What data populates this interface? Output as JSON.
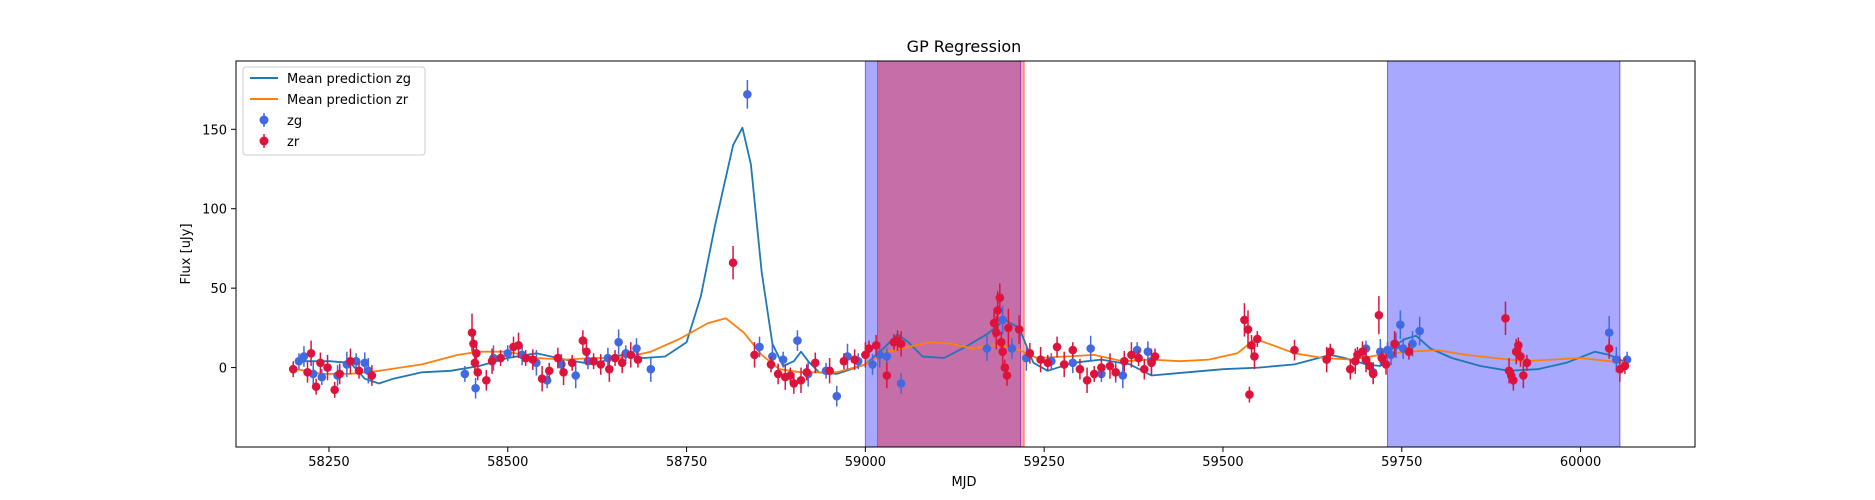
{
  "chart_data": {
    "type": "scatter",
    "title": "GP Regression",
    "xlabel": "MJD",
    "ylabel": "Flux [uJy]",
    "xlim": [
      58120,
      60160
    ],
    "ylim": [
      -50,
      193
    ],
    "xticks": [
      58250,
      58500,
      58750,
      59000,
      59250,
      59500,
      59750,
      60000
    ],
    "yticks": [
      0,
      50,
      100,
      150
    ],
    "legend_position": "top-left",
    "legend": [
      "Mean prediction zg",
      "Mean prediction zr",
      "zg",
      "zr"
    ],
    "colors": {
      "zg_line": "#1f77b4",
      "zr_line": "#ff7f0e",
      "zg_points": "#4169e1",
      "zr_points": "#dc143c",
      "zg_span": "#0000ff",
      "zr_span": "#ff0000"
    },
    "shaded_regions": [
      {
        "band": "zg",
        "x_start": 59000,
        "x_end": 59217
      },
      {
        "band": "zr",
        "x_start": 59017,
        "x_end": 59222
      },
      {
        "band": "zg",
        "x_start": 59730,
        "x_end": 60055
      }
    ],
    "series": [
      {
        "name": "Mean prediction zg",
        "type": "line",
        "points": [
          [
            58205,
            4
          ],
          [
            58250,
            4
          ],
          [
            58280,
            3
          ],
          [
            58300,
            -7
          ],
          [
            58320,
            -10
          ],
          [
            58340,
            -7
          ],
          [
            58380,
            -3
          ],
          [
            58420,
            -2
          ],
          [
            58460,
            1
          ],
          [
            58500,
            6
          ],
          [
            58540,
            9
          ],
          [
            58580,
            5
          ],
          [
            58620,
            2
          ],
          [
            58660,
            8
          ],
          [
            58690,
            6
          ],
          [
            58720,
            7
          ],
          [
            58750,
            16
          ],
          [
            58770,
            45
          ],
          [
            58790,
            90
          ],
          [
            58815,
            140
          ],
          [
            58828,
            151
          ],
          [
            58840,
            128
          ],
          [
            58855,
            60
          ],
          [
            58870,
            15
          ],
          [
            58885,
            1
          ],
          [
            58900,
            4
          ],
          [
            58910,
            10
          ],
          [
            58920,
            4
          ],
          [
            58935,
            -3
          ],
          [
            58960,
            -4
          ],
          [
            59000,
            2
          ],
          [
            59025,
            12
          ],
          [
            59045,
            21
          ],
          [
            59060,
            16
          ],
          [
            59080,
            7
          ],
          [
            59110,
            6
          ],
          [
            59140,
            13
          ],
          [
            59170,
            21
          ],
          [
            59195,
            30
          ],
          [
            59215,
            25
          ],
          [
            59235,
            3
          ],
          [
            59255,
            -2
          ],
          [
            59290,
            3
          ],
          [
            59330,
            5
          ],
          [
            59370,
            2
          ],
          [
            59400,
            -5
          ],
          [
            59450,
            -3
          ],
          [
            59500,
            -1
          ],
          [
            59550,
            0
          ],
          [
            59600,
            2
          ],
          [
            59650,
            8
          ],
          [
            59670,
            6
          ],
          [
            59700,
            2
          ],
          [
            59720,
            1
          ],
          [
            59740,
            14
          ],
          [
            59755,
            18
          ],
          [
            59770,
            20
          ],
          [
            59790,
            12
          ],
          [
            59820,
            6
          ],
          [
            59860,
            1
          ],
          [
            59900,
            -2
          ],
          [
            59940,
            -1
          ],
          [
            59980,
            3
          ],
          [
            60020,
            10
          ],
          [
            60040,
            8
          ],
          [
            60060,
            4
          ]
        ]
      },
      {
        "name": "Mean prediction zr",
        "type": "line",
        "points": [
          [
            58205,
            -1
          ],
          [
            58240,
            -4
          ],
          [
            58280,
            -4
          ],
          [
            58320,
            -2
          ],
          [
            58380,
            2
          ],
          [
            58430,
            8
          ],
          [
            58460,
            10
          ],
          [
            58500,
            10
          ],
          [
            58540,
            6
          ],
          [
            58580,
            5
          ],
          [
            58620,
            6
          ],
          [
            58660,
            6
          ],
          [
            58700,
            10
          ],
          [
            58740,
            18
          ],
          [
            58780,
            28
          ],
          [
            58805,
            31
          ],
          [
            58830,
            22
          ],
          [
            58855,
            8
          ],
          [
            58880,
            -1
          ],
          [
            58910,
            -3
          ],
          [
            58960,
            -3
          ],
          [
            59000,
            2
          ],
          [
            59030,
            10
          ],
          [
            59060,
            13
          ],
          [
            59090,
            16
          ],
          [
            59120,
            15
          ],
          [
            59150,
            12
          ],
          [
            59180,
            14
          ],
          [
            59210,
            12
          ],
          [
            59240,
            6
          ],
          [
            59280,
            7
          ],
          [
            59320,
            8
          ],
          [
            59360,
            4
          ],
          [
            59400,
            5
          ],
          [
            59440,
            4
          ],
          [
            59480,
            5
          ],
          [
            59520,
            9
          ],
          [
            59545,
            18
          ],
          [
            59570,
            14
          ],
          [
            59600,
            9
          ],
          [
            59640,
            6
          ],
          [
            59680,
            5
          ],
          [
            59720,
            8
          ],
          [
            59760,
            10
          ],
          [
            59800,
            11
          ],
          [
            59840,
            8
          ],
          [
            59880,
            6
          ],
          [
            59920,
            4
          ],
          [
            59960,
            5
          ],
          [
            60000,
            6
          ],
          [
            60040,
            4
          ],
          [
            60060,
            3
          ]
        ]
      },
      {
        "name": "zg",
        "type": "scatter",
        "points": [
          [
            58208,
            4
          ],
          [
            58215,
            7
          ],
          [
            58228,
            -4
          ],
          [
            58240,
            -6
          ],
          [
            58262,
            -5
          ],
          [
            58275,
            2
          ],
          [
            58288,
            4
          ],
          [
            58300,
            3
          ],
          [
            58305,
            -2
          ],
          [
            58440,
            -4
          ],
          [
            58455,
            -13
          ],
          [
            58480,
            6
          ],
          [
            58500,
            9
          ],
          [
            58520,
            8
          ],
          [
            58540,
            3
          ],
          [
            58555,
            -8
          ],
          [
            58575,
            2
          ],
          [
            58595,
            -5
          ],
          [
            58612,
            4
          ],
          [
            58640,
            6
          ],
          [
            58655,
            16
          ],
          [
            58665,
            9
          ],
          [
            58680,
            12
          ],
          [
            58700,
            -1
          ],
          [
            58835,
            172
          ],
          [
            58852,
            13
          ],
          [
            58870,
            7
          ],
          [
            58885,
            5
          ],
          [
            58905,
            17
          ],
          [
            58920,
            -4
          ],
          [
            58945,
            -2
          ],
          [
            58960,
            -18
          ],
          [
            58975,
            7
          ],
          [
            58990,
            4
          ],
          [
            59010,
            2
          ],
          [
            59020,
            8
          ],
          [
            59030,
            7
          ],
          [
            59050,
            -10
          ],
          [
            59170,
            12
          ],
          [
            59192,
            30
          ],
          [
            59205,
            12
          ],
          [
            59225,
            6
          ],
          [
            59260,
            4
          ],
          [
            59290,
            3
          ],
          [
            59315,
            12
          ],
          [
            59330,
            -4
          ],
          [
            59350,
            -3
          ],
          [
            59360,
            -5
          ],
          [
            59380,
            11
          ],
          [
            59395,
            10
          ],
          [
            59400,
            4
          ],
          [
            59700,
            12
          ],
          [
            59710,
            -3
          ],
          [
            59720,
            10
          ],
          [
            59730,
            11
          ],
          [
            59735,
            8
          ],
          [
            59742,
            14
          ],
          [
            59748,
            27
          ],
          [
            59752,
            12
          ],
          [
            59765,
            15
          ],
          [
            59775,
            23
          ],
          [
            60040,
            22
          ],
          [
            60050,
            5
          ],
          [
            60065,
            5
          ]
        ]
      },
      {
        "name": "zr",
        "type": "scatter",
        "points": [
          [
            58200,
            -1
          ],
          [
            58220,
            -3
          ],
          [
            58225,
            9
          ],
          [
            58232,
            -12
          ],
          [
            58238,
            3
          ],
          [
            58248,
            0
          ],
          [
            58258,
            -14
          ],
          [
            58265,
            -4
          ],
          [
            58280,
            4
          ],
          [
            58292,
            -2
          ],
          [
            58310,
            -5
          ],
          [
            58450,
            22
          ],
          [
            58452,
            15
          ],
          [
            58454,
            3
          ],
          [
            58456,
            9
          ],
          [
            58458,
            -3
          ],
          [
            58470,
            -8
          ],
          [
            58478,
            4
          ],
          [
            58490,
            6
          ],
          [
            58508,
            13
          ],
          [
            58515,
            14
          ],
          [
            58525,
            6
          ],
          [
            58535,
            5
          ],
          [
            58548,
            -7
          ],
          [
            58558,
            -2
          ],
          [
            58570,
            6
          ],
          [
            58578,
            -3
          ],
          [
            58590,
            3
          ],
          [
            58605,
            17
          ],
          [
            58610,
            10
          ],
          [
            58620,
            4
          ],
          [
            58630,
            2
          ],
          [
            58642,
            -1
          ],
          [
            58650,
            6
          ],
          [
            58660,
            3
          ],
          [
            58672,
            8
          ],
          [
            58682,
            5
          ],
          [
            58815,
            66
          ],
          [
            58845,
            8
          ],
          [
            58868,
            2
          ],
          [
            58878,
            -4
          ],
          [
            58888,
            -6
          ],
          [
            58895,
            -5
          ],
          [
            58900,
            -10
          ],
          [
            58910,
            -8
          ],
          [
            58918,
            -3
          ],
          [
            58930,
            3
          ],
          [
            58950,
            -2
          ],
          [
            58970,
            4
          ],
          [
            58985,
            5
          ],
          [
            59000,
            8
          ],
          [
            59005,
            12
          ],
          [
            59015,
            14
          ],
          [
            59030,
            -5
          ],
          [
            59040,
            16
          ],
          [
            59045,
            17
          ],
          [
            59050,
            15
          ],
          [
            59180,
            28
          ],
          [
            59183,
            22
          ],
          [
            59185,
            36
          ],
          [
            59188,
            44
          ],
          [
            59190,
            16
          ],
          [
            59192,
            10
          ],
          [
            59195,
            0
          ],
          [
            59198,
            -5
          ],
          [
            59200,
            25
          ],
          [
            59215,
            24
          ],
          [
            59230,
            9
          ],
          [
            59245,
            5
          ],
          [
            59255,
            3
          ],
          [
            59268,
            13
          ],
          [
            59278,
            2
          ],
          [
            59290,
            11
          ],
          [
            59300,
            -1
          ],
          [
            59310,
            -8
          ],
          [
            59320,
            -4
          ],
          [
            59330,
            0
          ],
          [
            59342,
            1
          ],
          [
            59350,
            -3
          ],
          [
            59362,
            4
          ],
          [
            59372,
            8
          ],
          [
            59382,
            6
          ],
          [
            59390,
            -1
          ],
          [
            59400,
            3
          ],
          [
            59405,
            7
          ],
          [
            59530,
            30
          ],
          [
            59535,
            24
          ],
          [
            59537,
            -17
          ],
          [
            59540,
            14
          ],
          [
            59544,
            7
          ],
          [
            59548,
            18
          ],
          [
            59600,
            11
          ],
          [
            59645,
            5
          ],
          [
            59650,
            10
          ],
          [
            59678,
            -1
          ],
          [
            59685,
            4
          ],
          [
            59688,
            8
          ],
          [
            59695,
            10
          ],
          [
            59700,
            5
          ],
          [
            59705,
            1
          ],
          [
            59710,
            -4
          ],
          [
            59718,
            33
          ],
          [
            59722,
            6
          ],
          [
            59728,
            2
          ],
          [
            59740,
            15
          ],
          [
            59760,
            10
          ],
          [
            59895,
            31
          ],
          [
            59900,
            -2
          ],
          [
            59903,
            -5
          ],
          [
            59906,
            -8
          ],
          [
            59910,
            10
          ],
          [
            59913,
            14
          ],
          [
            59916,
            7
          ],
          [
            59920,
            -5
          ],
          [
            59925,
            3
          ],
          [
            60040,
            12
          ],
          [
            60055,
            -1
          ],
          [
            60062,
            1
          ]
        ]
      }
    ]
  }
}
